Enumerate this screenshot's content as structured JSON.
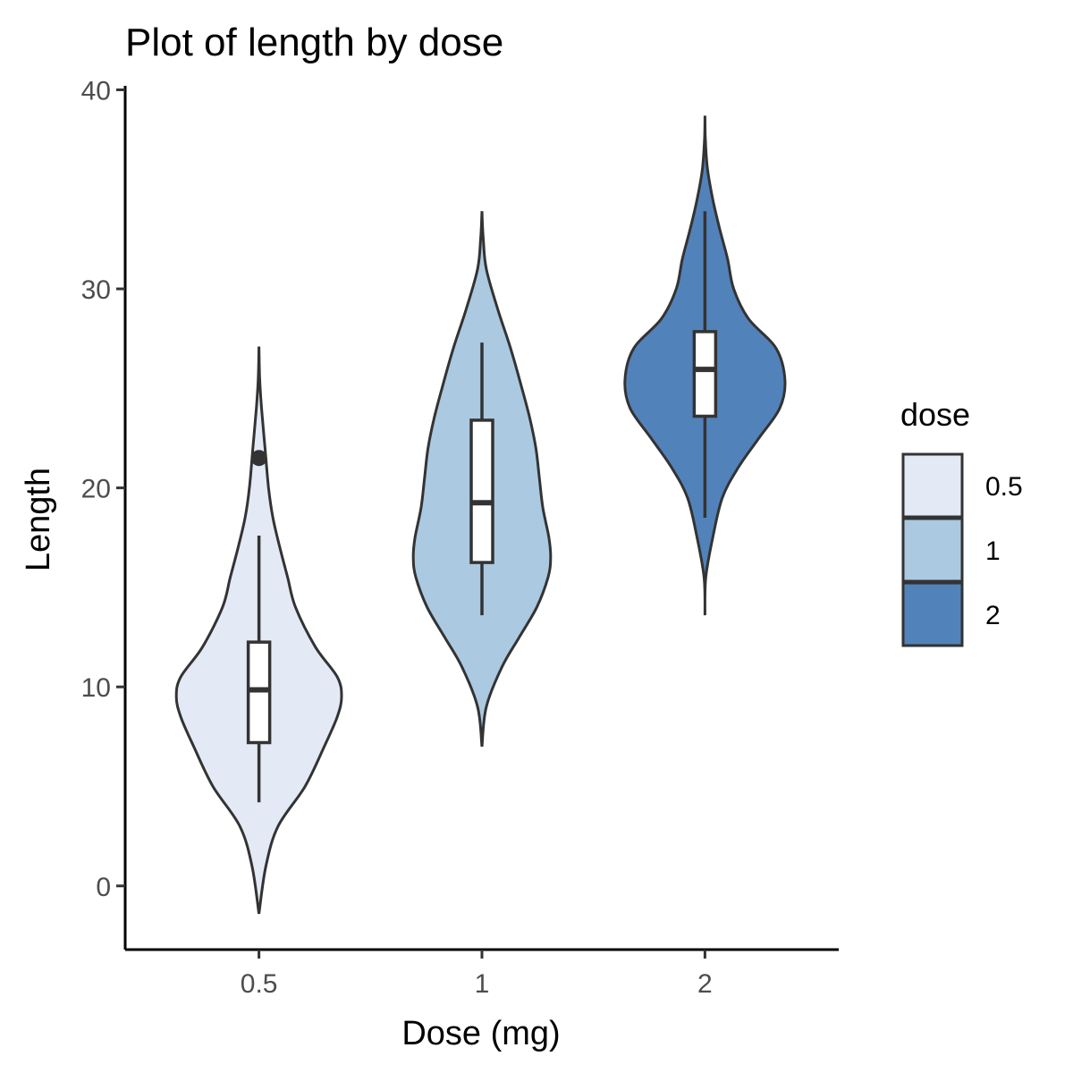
{
  "chart_data": {
    "type": "violin",
    "title": "Plot of length  by dose",
    "xlabel": "Dose (mg)",
    "ylabel": "Length",
    "categories": [
      "0.5",
      "1",
      "2"
    ],
    "ylim": [
      -3.2,
      40.2
    ],
    "yticks": [
      0,
      10,
      20,
      30,
      40
    ],
    "grid": false,
    "legend": {
      "title": "dose",
      "position": "right",
      "entries": [
        {
          "label": "0.5",
          "color": "#E3EAF6"
        },
        {
          "label": "1",
          "color": "#ABC9E1"
        },
        {
          "label": "2",
          "color": "#5282BA"
        }
      ]
    },
    "series": [
      {
        "category": "0.5",
        "color": "#E3EAF6",
        "violin": {
          "y": [
            -1.4,
            1,
            3,
            5,
            7,
            8.5,
            9.5,
            10.5,
            12,
            14,
            15.5,
            17,
            18.5,
            20,
            22,
            24,
            25.5,
            27.1
          ],
          "density": [
            0.0,
            0.08,
            0.22,
            0.53,
            0.75,
            0.9,
            0.95,
            0.9,
            0.65,
            0.42,
            0.33,
            0.24,
            0.16,
            0.11,
            0.07,
            0.03,
            0.008,
            0.0
          ]
        },
        "box": {
          "whisker_low": 4.2,
          "q1": 7.2,
          "median": 9.85,
          "q3": 12.25,
          "whisker_high": 17.6
        },
        "outliers": [
          21.5
        ]
      },
      {
        "category": "1",
        "color": "#ABC9E1",
        "violin": {
          "y": [
            7,
            9,
            11,
            12.5,
            14,
            15.5,
            16.5,
            17.5,
            19,
            20.5,
            22,
            23.5,
            25,
            27,
            29,
            31,
            32.5,
            33.9
          ],
          "density": [
            0.0,
            0.05,
            0.23,
            0.43,
            0.63,
            0.76,
            0.79,
            0.77,
            0.7,
            0.66,
            0.62,
            0.55,
            0.46,
            0.33,
            0.18,
            0.05,
            0.015,
            0.0
          ]
        },
        "box": {
          "whisker_low": 13.6,
          "q1": 16.25,
          "median": 19.25,
          "q3": 23.4,
          "whisker_high": 27.3
        },
        "outliers": []
      },
      {
        "category": "2",
        "color": "#5282BA",
        "violin": {
          "y": [
            13.6,
            15.5,
            17.5,
            19.5,
            21,
            22.5,
            24,
            25.4,
            27,
            28.5,
            30,
            31.5,
            33,
            34.5,
            36,
            37.5,
            38.7
          ],
          "density": [
            0.0,
            0.01,
            0.09,
            0.2,
            0.38,
            0.62,
            0.86,
            0.92,
            0.82,
            0.5,
            0.33,
            0.26,
            0.17,
            0.09,
            0.03,
            0.005,
            0.0
          ]
        },
        "box": {
          "whisker_low": 18.5,
          "q1": 23.6,
          "median": 25.95,
          "q3": 27.85,
          "whisker_high": 33.9
        },
        "outliers": []
      }
    ]
  }
}
